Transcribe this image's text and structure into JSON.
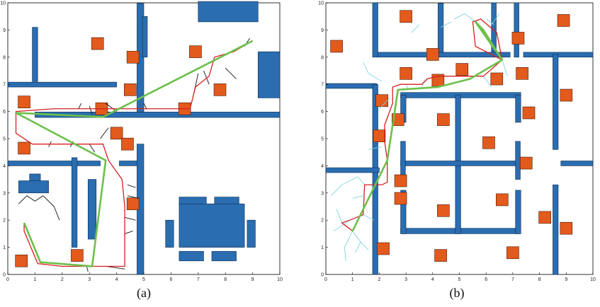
{
  "figure": {
    "panels": [
      {
        "id": "a",
        "caption": "(a)",
        "ticks_x": [
          "0",
          "1",
          "2",
          "3",
          "4",
          "5",
          "6",
          "7",
          "8",
          "9",
          "10"
        ],
        "ticks_y": [
          "0",
          "1",
          "2",
          "3",
          "4",
          "5",
          "6",
          "7",
          "8",
          "9",
          "10"
        ],
        "colors": {
          "wall": "#2a6db0",
          "obstacle": "#e35a1d",
          "tree": "#111111",
          "path": "#d62020",
          "smoothed": "#6cc04a"
        },
        "walls": [
          [
            0,
            6.9,
            4.0,
            0.18
          ],
          [
            0.9,
            7.1,
            0.2,
            2.0
          ],
          [
            1.0,
            5.78,
            9.0,
            0.2
          ],
          [
            4.75,
            5.98,
            0.25,
            4.0
          ],
          [
            4.95,
            8.0,
            0.18,
            1.5
          ],
          [
            0,
            4.0,
            3.4,
            0.18
          ],
          [
            4.1,
            4.0,
            0.7,
            0.18
          ],
          [
            4.75,
            0,
            0.25,
            4.8
          ],
          [
            2.35,
            1.0,
            0.2,
            3.3
          ],
          [
            2.95,
            1.3,
            0.3,
            2.2
          ],
          [
            0.4,
            3.0,
            1.1,
            0.45
          ],
          [
            0.8,
            3.45,
            0.4,
            0.25
          ],
          [
            7.0,
            9.3,
            2.2,
            0.75
          ],
          [
            9.2,
            6.5,
            0.8,
            1.7
          ],
          [
            6.3,
            2.5,
            1.0,
            0.35
          ],
          [
            7.6,
            2.5,
            0.9,
            0.35
          ],
          [
            6.3,
            0.5,
            0.9,
            0.35
          ],
          [
            7.5,
            0.5,
            0.9,
            0.35
          ],
          [
            5.8,
            1.0,
            0.3,
            1.0
          ],
          [
            8.8,
            1.0,
            0.3,
            1.0
          ],
          [
            6.3,
            1.0,
            2.4,
            1.6
          ]
        ],
        "obstacles": [
          [
            3.3,
            8.5
          ],
          [
            4.6,
            8.0
          ],
          [
            6.9,
            8.2
          ],
          [
            4.5,
            6.8
          ],
          [
            7.8,
            6.8
          ],
          [
            0.6,
            6.35
          ],
          [
            3.45,
            6.1
          ],
          [
            6.5,
            6.1
          ],
          [
            4.0,
            5.2
          ],
          [
            4.4,
            4.8
          ],
          [
            0.6,
            4.65
          ],
          [
            4.6,
            2.6
          ],
          [
            2.55,
            0.7
          ],
          [
            0.5,
            0.5
          ]
        ],
        "path": [
          [
            9.0,
            8.6
          ],
          [
            8.3,
            8.2
          ],
          [
            7.6,
            8.0
          ],
          [
            7.4,
            7.3
          ],
          [
            6.9,
            6.9
          ],
          [
            6.7,
            6.1
          ],
          [
            5.9,
            6.1
          ],
          [
            4.9,
            6.1
          ],
          [
            3.5,
            6.1
          ],
          [
            1.7,
            6.1
          ],
          [
            0.3,
            6.0
          ],
          [
            0.3,
            5.2
          ],
          [
            0.9,
            4.8
          ],
          [
            2.0,
            4.8
          ],
          [
            3.5,
            4.8
          ],
          [
            3.7,
            4.2
          ],
          [
            4.2,
            3.5
          ],
          [
            4.3,
            2.5
          ],
          [
            4.3,
            0.3
          ],
          [
            2.0,
            0.3
          ],
          [
            1.1,
            0.4
          ],
          [
            0.6,
            1.6
          ],
          [
            0.6,
            1.9
          ]
        ],
        "smoothed": [
          [
            9.0,
            8.6
          ],
          [
            3.5,
            5.8
          ],
          [
            0.3,
            5.95
          ],
          [
            3.6,
            4.2
          ],
          [
            3.1,
            0.3
          ],
          [
            1.2,
            0.45
          ],
          [
            0.6,
            1.9
          ]
        ],
        "tree": [
          [
            [
              7.0,
              7.4
            ],
            [
              6.8,
              6.5
            ]
          ],
          [
            [
              7.2,
              7.5
            ],
            [
              7.4,
              7.0
            ]
          ],
          [
            [
              8.0,
              7.6
            ],
            [
              8.4,
              7.2
            ]
          ],
          [
            [
              8.7,
              8.4
            ],
            [
              8.9,
              8.7
            ]
          ],
          [
            [
              3.6,
              6.3
            ],
            [
              4.0,
              6.0
            ]
          ],
          [
            [
              3.0,
              6.2
            ],
            [
              3.1,
              5.9
            ]
          ],
          [
            [
              2.6,
              6.1
            ],
            [
              2.7,
              6.3
            ]
          ],
          [
            [
              5.0,
              6.3
            ],
            [
              5.1,
              6.1
            ]
          ],
          [
            [
              3.7,
              5.4
            ],
            [
              3.4,
              5.0
            ]
          ],
          [
            [
              3.0,
              4.8
            ],
            [
              3.2,
              4.5
            ]
          ],
          [
            [
              2.3,
              4.7
            ],
            [
              2.4,
              4.9
            ]
          ],
          [
            [
              1.5,
              4.7
            ],
            [
              1.6,
              4.9
            ]
          ],
          [
            [
              4.4,
              3.3
            ],
            [
              4.7,
              3.2
            ]
          ],
          [
            [
              4.4,
              2.9
            ],
            [
              4.8,
              2.8
            ]
          ],
          [
            [
              4.3,
              2.1
            ],
            [
              4.7,
              2.0
            ]
          ],
          [
            [
              4.3,
              1.5
            ],
            [
              4.6,
              1.6
            ]
          ],
          [
            [
              0.4,
              2.6
            ],
            [
              0.7,
              2.9
            ]
          ],
          [
            [
              0.7,
              2.9
            ],
            [
              1.0,
              2.7
            ]
          ],
          [
            [
              1.0,
              2.7
            ],
            [
              1.3,
              2.9
            ]
          ],
          [
            [
              1.3,
              2.9
            ],
            [
              1.7,
              2.5
            ]
          ],
          [
            [
              1.7,
              2.5
            ],
            [
              1.9,
              2.0
            ]
          ],
          [
            [
              3.6,
              0.3
            ],
            [
              4.3,
              0.2
            ]
          ],
          [
            [
              2.9,
              0.3
            ],
            [
              2.95,
              0.1
            ]
          ]
        ]
      },
      {
        "id": "b",
        "caption": "(b)",
        "ticks_x": [
          "0",
          "1",
          "2",
          "3",
          "4",
          "5",
          "6",
          "7",
          "8",
          "9",
          "10"
        ],
        "ticks_y": [
          "0",
          "1",
          "2",
          "3",
          "4",
          "5",
          "6",
          "7",
          "8",
          "9",
          "10"
        ],
        "colors": {
          "wall": "#2a6db0",
          "obstacle": "#e35a1d",
          "tree": "#7fd6dd",
          "path": "#d62020",
          "smoothed": "#6cc04a"
        },
        "walls": [
          [
            0,
            6.85,
            1.9,
            0.18
          ],
          [
            1.75,
            0,
            0.2,
            7.0
          ],
          [
            1.9,
            8.0,
            5.0,
            0.18
          ],
          [
            1.75,
            8.0,
            0.2,
            2.0
          ],
          [
            4.2,
            8.18,
            0.2,
            1.8
          ],
          [
            6.2,
            8.2,
            0.18,
            1.8
          ],
          [
            7.05,
            8.0,
            0.18,
            2.0
          ],
          [
            7.4,
            8.0,
            2.6,
            0.18
          ],
          [
            0,
            3.75,
            2.0,
            0.18
          ],
          [
            2.8,
            6.5,
            4.5,
            0.2
          ],
          [
            2.8,
            5.6,
            0.2,
            1.0
          ],
          [
            7.1,
            5.6,
            0.2,
            1.0
          ],
          [
            2.8,
            1.5,
            4.5,
            0.2
          ],
          [
            2.8,
            1.5,
            0.2,
            1.6
          ],
          [
            7.1,
            1.5,
            0.2,
            1.6
          ],
          [
            4.85,
            1.5,
            0.2,
            5.1
          ],
          [
            2.8,
            4.0,
            4.5,
            0.18
          ],
          [
            2.8,
            3.5,
            0.18,
            1.4
          ],
          [
            7.1,
            3.5,
            0.18,
            1.4
          ],
          [
            8.5,
            0,
            0.2,
            3.3
          ],
          [
            8.5,
            4.6,
            0.2,
            3.5
          ],
          [
            8.8,
            4.0,
            1.2,
            0.18
          ]
        ],
        "obstacles": [
          [
            0.4,
            8.4
          ],
          [
            3.0,
            9.5
          ],
          [
            4.0,
            8.1
          ],
          [
            7.2,
            8.7
          ],
          [
            8.9,
            9.35
          ],
          [
            3.0,
            7.4
          ],
          [
            4.2,
            7.15
          ],
          [
            5.1,
            7.55
          ],
          [
            6.4,
            7.2
          ],
          [
            7.35,
            7.4
          ],
          [
            9.0,
            6.6
          ],
          [
            2.1,
            6.4
          ],
          [
            2.7,
            5.7
          ],
          [
            4.4,
            5.7
          ],
          [
            7.6,
            5.95
          ],
          [
            2.0,
            5.1
          ],
          [
            6.1,
            4.85
          ],
          [
            7.5,
            4.1
          ],
          [
            2.8,
            3.45
          ],
          [
            2.8,
            2.8
          ],
          [
            4.4,
            2.35
          ],
          [
            6.6,
            2.75
          ],
          [
            8.2,
            2.1
          ],
          [
            9.0,
            1.7
          ],
          [
            2.15,
            0.95
          ],
          [
            4.3,
            0.7
          ],
          [
            7.0,
            0.8
          ]
        ],
        "path": [
          [
            6.6,
            7.9
          ],
          [
            5.6,
            8.4
          ],
          [
            5.5,
            9.3
          ],
          [
            5.8,
            9.4
          ],
          [
            6.4,
            8.9
          ],
          [
            6.6,
            7.9
          ],
          [
            5.9,
            7.3
          ],
          [
            4.7,
            7.3
          ],
          [
            4.2,
            7.3
          ],
          [
            3.8,
            7.2
          ],
          [
            3.6,
            7.0
          ],
          [
            2.8,
            7.0
          ],
          [
            2.5,
            6.9
          ],
          [
            2.5,
            6.3
          ],
          [
            2.2,
            5.5
          ],
          [
            2.2,
            4.9
          ],
          [
            2.3,
            4.2
          ],
          [
            2.3,
            3.4
          ],
          [
            2.1,
            3.3
          ],
          [
            1.45,
            3.3
          ],
          [
            1.4,
            2.2
          ],
          [
            0.9,
            2.0
          ],
          [
            0.6,
            1.9
          ],
          [
            1.0,
            1.6
          ]
        ],
        "smoothed": [
          [
            6.6,
            7.9
          ],
          [
            5.9,
            9.0
          ],
          [
            5.6,
            9.3
          ],
          [
            6.6,
            7.9
          ],
          [
            5.4,
            7.2
          ],
          [
            4.2,
            6.9
          ],
          [
            2.7,
            6.8
          ],
          [
            2.3,
            4.2
          ],
          [
            1.0,
            1.6
          ]
        ],
        "tree": [
          [
            [
              5.6,
              9.3
            ],
            [
              5.2,
              9.6
            ]
          ],
          [
            [
              5.2,
              9.6
            ],
            [
              4.8,
              9.4
            ]
          ],
          [
            [
              6.2,
              9.2
            ],
            [
              6.5,
              9.6
            ]
          ],
          [
            [
              6.6,
              7.9
            ],
            [
              6.8,
              7.3
            ]
          ],
          [
            [
              5.9,
              7.3
            ],
            [
              6.2,
              6.9
            ]
          ],
          [
            [
              3.7,
              7.2
            ],
            [
              3.6,
              6.9
            ]
          ],
          [
            [
              3.0,
              7.0
            ],
            [
              3.1,
              6.8
            ]
          ],
          [
            [
              2.1,
              7.1
            ],
            [
              1.6,
              7.4
            ]
          ],
          [
            [
              1.6,
              7.4
            ],
            [
              1.4,
              7.8
            ]
          ],
          [
            [
              2.4,
              6.5
            ],
            [
              2.0,
              6.1
            ]
          ],
          [
            [
              2.1,
              4.7
            ],
            [
              1.6,
              4.6
            ]
          ],
          [
            [
              1.45,
              3.3
            ],
            [
              1.2,
              3.6
            ]
          ],
          [
            [
              1.2,
              3.6
            ],
            [
              0.6,
              3.3
            ]
          ],
          [
            [
              0.6,
              3.3
            ],
            [
              0.2,
              2.9
            ]
          ],
          [
            [
              1.4,
              2.9
            ],
            [
              1.0,
              2.8
            ]
          ],
          [
            [
              1.4,
              2.2
            ],
            [
              1.8,
              2.0
            ]
          ],
          [
            [
              0.9,
              2.0
            ],
            [
              0.3,
              1.6
            ]
          ],
          [
            [
              0.6,
              1.9
            ],
            [
              0.4,
              2.4
            ]
          ],
          [
            [
              1.0,
              1.6
            ],
            [
              1.3,
              1.2
            ]
          ],
          [
            [
              1.3,
              1.2
            ],
            [
              1.1,
              0.8
            ]
          ],
          [
            [
              1.0,
              1.6
            ],
            [
              0.7,
              1.0
            ]
          ],
          [
            [
              0.7,
              1.0
            ],
            [
              0.75,
              0.5
            ]
          ],
          [
            [
              1.3,
              1.2
            ],
            [
              1.6,
              0.9
            ]
          ],
          [
            [
              3.5,
              9.2
            ],
            [
              3.2,
              8.9
            ]
          ],
          [
            [
              4.7,
              9.3
            ],
            [
              4.3,
              9.1
            ]
          ],
          [
            [
              6.3,
              9.2
            ],
            [
              6.0,
              9.4
            ]
          ]
        ]
      }
    ]
  }
}
